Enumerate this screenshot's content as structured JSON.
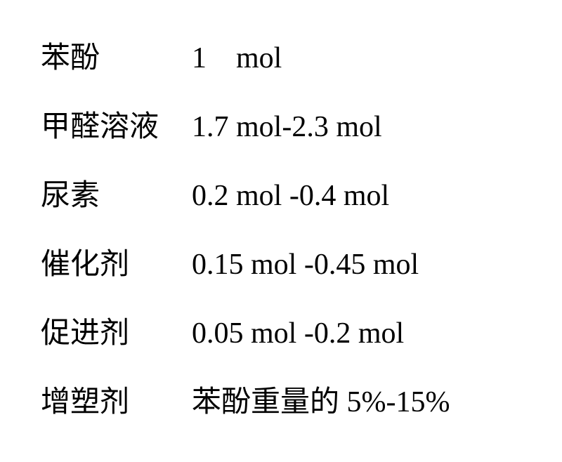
{
  "text_color": "#000000",
  "background_color": "#ffffff",
  "font_size_pt": 32,
  "rows": [
    {
      "label": "苯酚",
      "value": "1    mol"
    },
    {
      "label": "甲醛溶液",
      "value": "1.7 mol-2.3 mol"
    },
    {
      "label": "尿素",
      "value": "0.2 mol -0.4 mol"
    },
    {
      "label": "催化剂",
      "value": "0.15 mol -0.45 mol"
    },
    {
      "label": "促进剂",
      "value": "0.05 mol -0.2 mol"
    },
    {
      "label": "增塑剂",
      "value_prefix": "",
      "value_cjk": "苯酚重量的 ",
      "value_suffix": "5%-15%"
    }
  ]
}
